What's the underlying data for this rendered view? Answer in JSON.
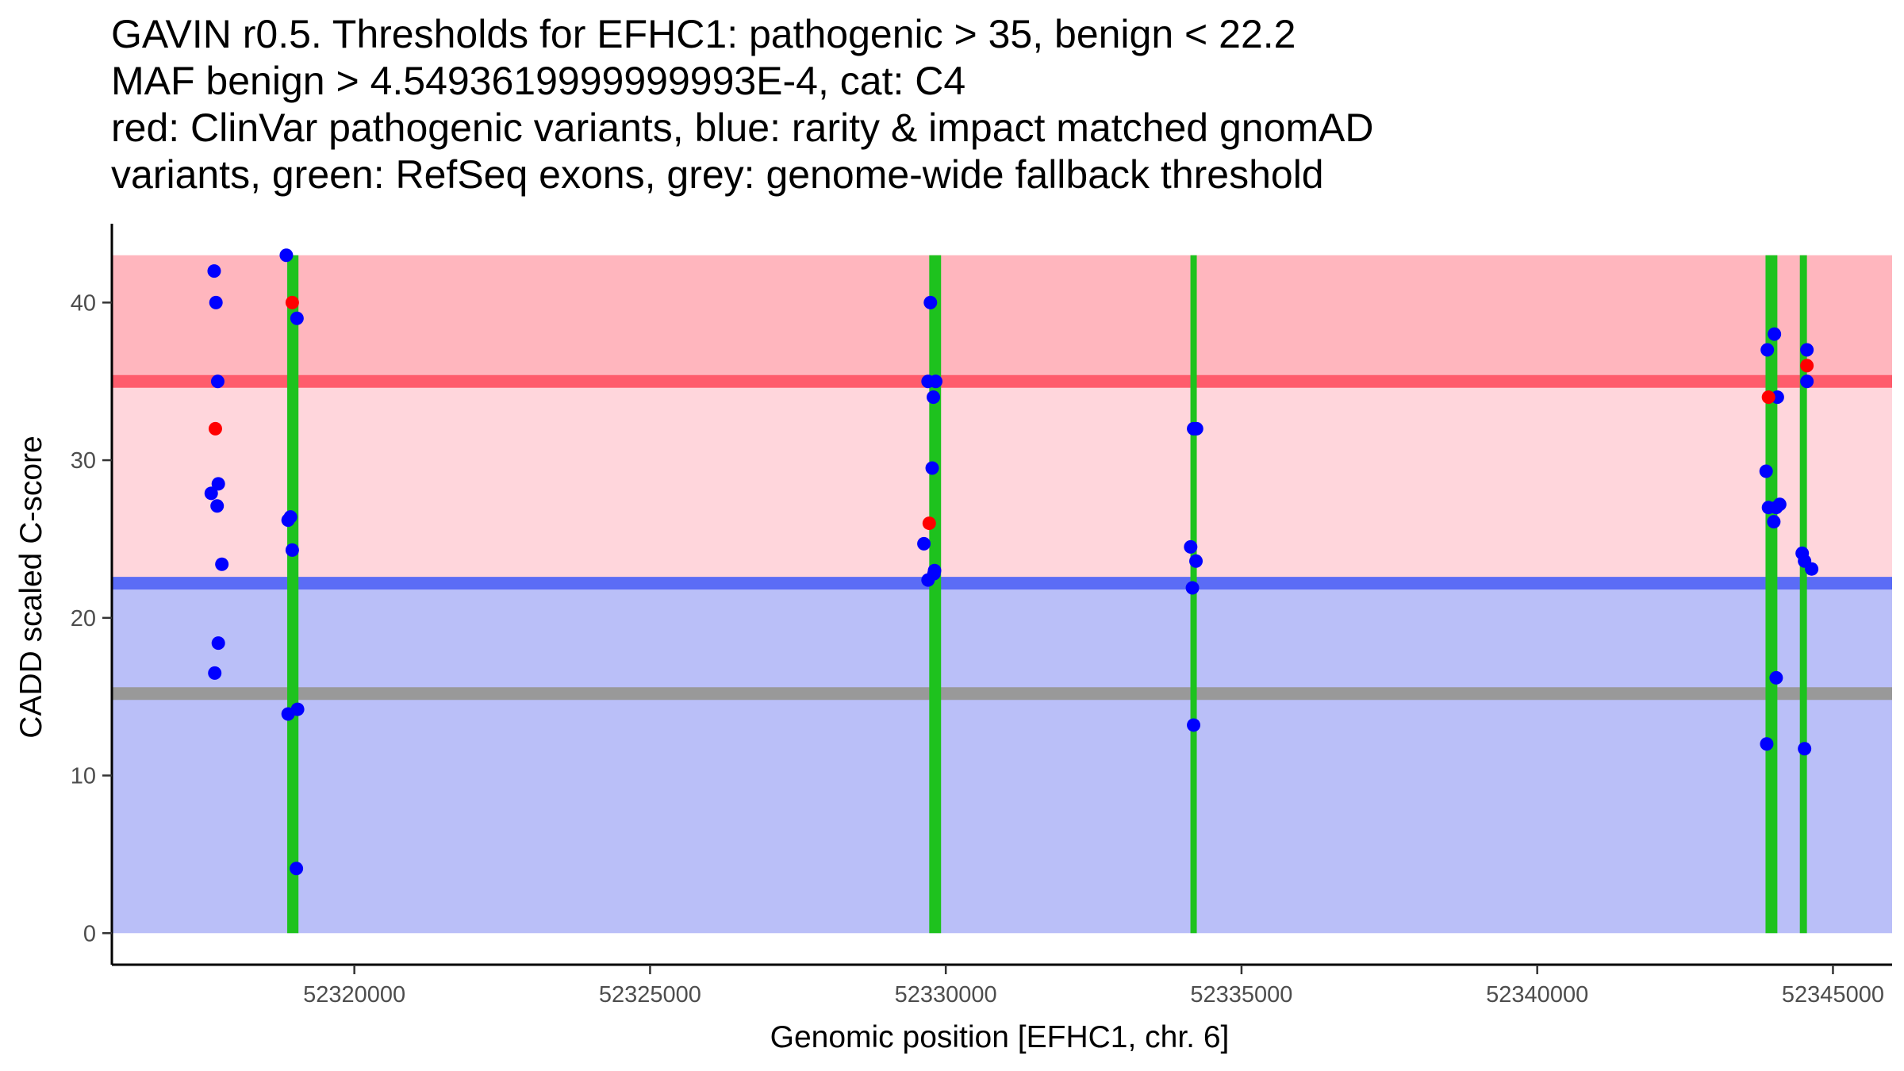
{
  "chart_data": {
    "type": "scatter",
    "title_lines": [
      "GAVIN r0.5. Thresholds for EFHC1: pathogenic > 35, benign < 22.2",
      "MAF benign > 4.5493619999999993E-4, cat: C4",
      "red: ClinVar pathogenic variants, blue: rarity & impact matched gnomAD",
      "variants, green: RefSeq exons, grey: genome-wide fallback threshold"
    ],
    "xlabel": "Genomic position [EFHC1, chr. 6]",
    "ylabel": "CADD scaled C-score",
    "xlim": [
      52315900,
      52346000
    ],
    "ylim": [
      -2,
      45
    ],
    "x_ticks": [
      52320000,
      52325000,
      52330000,
      52335000,
      52340000,
      52345000
    ],
    "y_ticks": [
      0,
      10,
      20,
      30,
      40
    ],
    "grid": false,
    "colors": {
      "pathogenic_zone": "#ffb6be",
      "middle_zone": "#ffd6dc",
      "benign_zone": "#babff8",
      "pathogenic_line": "#ff5c6c",
      "benign_line": "#5b6cf6",
      "fallback_line": "#999999",
      "exon": "#1ec21e",
      "pathogenic_point": "#ff0000",
      "gnomad_point": "#0000ff"
    },
    "thresholds": {
      "pathogenic": 35,
      "benign": 22.2,
      "fallback": 15.2,
      "max": 43
    },
    "exons": [
      {
        "start": 52318865,
        "end": 52319055
      },
      {
        "start": 52329720,
        "end": 52329920
      },
      {
        "start": 52334140,
        "end": 52334240
      },
      {
        "start": 52343860,
        "end": 52344060
      },
      {
        "start": 52344440,
        "end": 52344560
      }
    ],
    "series": [
      {
        "name": "ClinVar pathogenic variants",
        "points": [
          {
            "x": 52317650,
            "y": 32
          },
          {
            "x": 52318950,
            "y": 40
          },
          {
            "x": 52329720,
            "y": 26
          },
          {
            "x": 52343910,
            "y": 34
          },
          {
            "x": 52344560,
            "y": 36
          }
        ]
      },
      {
        "name": "rarity & impact matched gnomAD variants",
        "points": [
          {
            "x": 52317630,
            "y": 42
          },
          {
            "x": 52317660,
            "y": 40
          },
          {
            "x": 52317690,
            "y": 35
          },
          {
            "x": 52317700,
            "y": 28.5
          },
          {
            "x": 52317580,
            "y": 27.9
          },
          {
            "x": 52317680,
            "y": 27.1
          },
          {
            "x": 52317760,
            "y": 23.4
          },
          {
            "x": 52317700,
            "y": 18.4
          },
          {
            "x": 52317640,
            "y": 16.5
          },
          {
            "x": 52318850,
            "y": 43
          },
          {
            "x": 52319030,
            "y": 39
          },
          {
            "x": 52318880,
            "y": 26.2
          },
          {
            "x": 52318920,
            "y": 26.4
          },
          {
            "x": 52318950,
            "y": 24.3
          },
          {
            "x": 52318880,
            "y": 13.9
          },
          {
            "x": 52319040,
            "y": 14.2
          },
          {
            "x": 52319020,
            "y": 4.1
          },
          {
            "x": 52329740,
            "y": 40
          },
          {
            "x": 52329700,
            "y": 35
          },
          {
            "x": 52329830,
            "y": 35
          },
          {
            "x": 52329790,
            "y": 34
          },
          {
            "x": 52329770,
            "y": 29.5
          },
          {
            "x": 52329630,
            "y": 24.7
          },
          {
            "x": 52329810,
            "y": 23
          },
          {
            "x": 52329800,
            "y": 22.8
          },
          {
            "x": 52329700,
            "y": 22.4
          },
          {
            "x": 52334190,
            "y": 32
          },
          {
            "x": 52334240,
            "y": 32
          },
          {
            "x": 52334140,
            "y": 24.5
          },
          {
            "x": 52334230,
            "y": 23.6
          },
          {
            "x": 52334170,
            "y": 21.9
          },
          {
            "x": 52334190,
            "y": 13.2
          },
          {
            "x": 52343890,
            "y": 37
          },
          {
            "x": 52344010,
            "y": 38
          },
          {
            "x": 52344060,
            "y": 34
          },
          {
            "x": 52343870,
            "y": 29.3
          },
          {
            "x": 52343910,
            "y": 27
          },
          {
            "x": 52344040,
            "y": 27
          },
          {
            "x": 52344100,
            "y": 27.2
          },
          {
            "x": 52344000,
            "y": 26.1
          },
          {
            "x": 52344040,
            "y": 16.2
          },
          {
            "x": 52343880,
            "y": 12
          },
          {
            "x": 52344560,
            "y": 37
          },
          {
            "x": 52344560,
            "y": 35
          },
          {
            "x": 52344480,
            "y": 24.1
          },
          {
            "x": 52344520,
            "y": 23.6
          },
          {
            "x": 52344640,
            "y": 23.1
          },
          {
            "x": 52344520,
            "y": 11.7
          }
        ]
      }
    ]
  }
}
